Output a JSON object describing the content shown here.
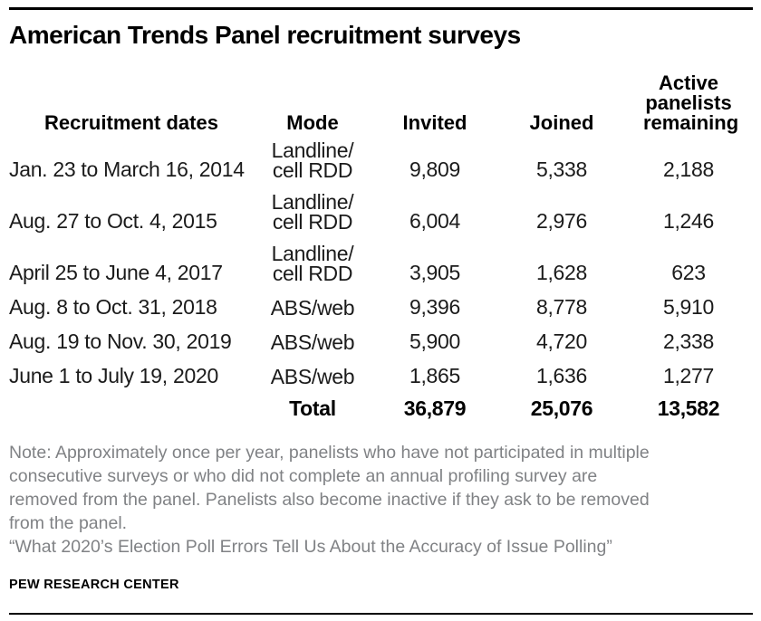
{
  "title": "American Trends Panel recruitment surveys",
  "table": {
    "headers": {
      "dates": "Recruitment dates",
      "mode": "Mode",
      "invited": "Invited",
      "joined": "Joined",
      "active": "Active panelists remaining"
    },
    "rows": [
      {
        "dates": "Jan. 23 to March 16, 2014",
        "mode": [
          "Landline/",
          "cell RDD"
        ],
        "invited": "9,809",
        "joined": "5,338",
        "active": "2,188"
      },
      {
        "dates": "Aug. 27 to Oct. 4, 2015",
        "mode": [
          "Landline/",
          "cell RDD"
        ],
        "invited": "6,004",
        "joined": "2,976",
        "active": "1,246"
      },
      {
        "dates": "April 25 to June 4, 2017",
        "mode": [
          "Landline/",
          "cell RDD"
        ],
        "invited": "3,905",
        "joined": "1,628",
        "active": "623"
      },
      {
        "dates": "Aug. 8 to Oct. 31, 2018",
        "mode": [
          "ABS/web"
        ],
        "invited": "9,396",
        "joined": "8,778",
        "active": "5,910"
      },
      {
        "dates": "Aug. 19 to Nov. 30, 2019",
        "mode": [
          "ABS/web"
        ],
        "invited": "5,900",
        "joined": "4,720",
        "active": "2,338"
      },
      {
        "dates": "June 1 to July 19, 2020",
        "mode": [
          "ABS/web"
        ],
        "invited": "1,865",
        "joined": "1,636",
        "active": "1,277"
      }
    ],
    "total": {
      "label": "Total",
      "invited": "36,879",
      "joined": "25,076",
      "active": "13,582"
    }
  },
  "note_lines": [
    "Note: Approximately once per year, panelists who have not participated in multiple",
    "consecutive surveys or who did not complete an annual profiling survey are",
    "removed from the panel. Panelists also become inactive if they ask to be removed",
    "from the panel."
  ],
  "source_line": "“What 2020’s Election Poll Errors Tell Us About the Accuracy of Issue Polling”",
  "branding": "PEW RESEARCH CENTER",
  "colors": {
    "text_black": "#000000",
    "note_gray": "#808285",
    "rule_black": "#000000",
    "background": "#ffffff"
  },
  "chart_data": {
    "type": "table",
    "title": "American Trends Panel recruitment surveys",
    "columns": [
      "Recruitment dates",
      "Mode",
      "Invited",
      "Joined",
      "Active panelists remaining"
    ],
    "rows": [
      [
        "Jan. 23 to March 16, 2014",
        "Landline/cell RDD",
        9809,
        5338,
        2188
      ],
      [
        "Aug. 27 to Oct. 4, 2015",
        "Landline/cell RDD",
        6004,
        2976,
        1246
      ],
      [
        "April 25 to June 4, 2017",
        "Landline/cell RDD",
        3905,
        1628,
        623
      ],
      [
        "Aug. 8 to Oct. 31, 2018",
        "ABS/web",
        9396,
        8778,
        5910
      ],
      [
        "Aug. 19 to Nov. 30, 2019",
        "ABS/web",
        5900,
        4720,
        2338
      ],
      [
        "June 1 to July 19, 2020",
        "ABS/web",
        1865,
        1636,
        1277
      ]
    ],
    "total_row": [
      "",
      "Total",
      36879,
      25076,
      13582
    ],
    "note": "Approximately once per year, panelists who have not participated in multiple consecutive surveys or who did not complete an annual profiling survey are removed from the panel. Panelists also become inactive if they ask to be removed from the panel.",
    "source": "What 2020’s Election Poll Errors Tell Us About the Accuracy of Issue Polling"
  }
}
